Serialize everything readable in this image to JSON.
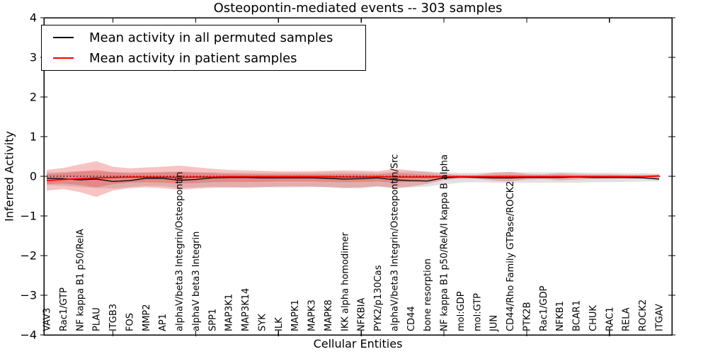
{
  "title": "Osteopontin-mediated events -- 303 samples",
  "axes": {
    "ylabel": "Inferred Activity",
    "xlabel": "Cellular Entities",
    "ylim": [
      -4,
      4
    ],
    "yticks": [
      {
        "value": 4,
        "label": "4"
      },
      {
        "value": 3,
        "label": "3"
      },
      {
        "value": 2,
        "label": "2"
      },
      {
        "value": 1,
        "label": "1"
      },
      {
        "value": 0,
        "label": "0"
      },
      {
        "value": -1,
        "label": "−1"
      },
      {
        "value": -2,
        "label": "−2"
      },
      {
        "value": -3,
        "label": "−3"
      },
      {
        "value": -4,
        "label": "−4"
      }
    ]
  },
  "legend": {
    "items": [
      {
        "label": "Mean activity in all permuted samples",
        "color": "#000000"
      },
      {
        "label": "Mean activity in patient samples",
        "color": "#ff0000"
      }
    ]
  },
  "chart_data": {
    "type": "line",
    "title": "Osteopontin-mediated events -- 303 samples",
    "xlabel": "Cellular Entities",
    "ylabel": "Inferred Activity",
    "ylim": [
      -4,
      4
    ],
    "grid": false,
    "legend_position": "upper left",
    "zero_line": {
      "style": "dotted",
      "color": "#000000",
      "y": 0
    },
    "categories": [
      "VAV3",
      "Rac1/GTP",
      "NF kappa B1 p50/RelA",
      "PLAU",
      "ITGB3",
      "FOS",
      "MMP2",
      "AP1",
      "alphaV/beta3 Integrin/Osteopontin",
      "alphaV beta3 Integrin",
      "SPP1",
      "MAP3K1",
      "MAP3K14",
      "SYK",
      "ILK",
      "MAPK1",
      "MAPK3",
      "MAPK8",
      "IKK alpha homodimer",
      "NFKBIA",
      "PYK2/p130Cas",
      "alphaV/beta3 Integrin/Osteopontin/Src",
      "CD44",
      "bone resorption",
      "NF kappa B1 p50/RelA/I kappa B alpha",
      "mol:GDP",
      "mol:GTP",
      "JUN",
      "CD44/Rho Family GTPase/ROCK2",
      "PTK2B",
      "Rac1/GDP",
      "NFKB1",
      "BCAR1",
      "CHUK",
      "RAC1",
      "RELA",
      "ROCK2",
      "ITGAV"
    ],
    "series": [
      {
        "name": "permuted-std-band",
        "type": "band",
        "color": "rgba(90,90,90,0.18)",
        "upper": [
          0.1,
          0.11,
          0.13,
          0.12,
          0.11,
          0.1,
          0.1,
          0.11,
          0.12,
          0.11,
          0.1,
          0.09,
          0.09,
          0.09,
          0.09,
          0.09,
          0.09,
          0.1,
          0.1,
          0.1,
          0.09,
          0.11,
          0.12,
          0.12,
          0.1,
          0.09,
          0.09,
          0.1,
          0.11,
          0.1,
          0.1,
          0.1,
          0.1,
          0.09,
          0.09,
          0.08,
          0.08,
          0.07
        ],
        "lower": [
          -0.22,
          -0.24,
          -0.27,
          -0.29,
          -0.31,
          -0.27,
          -0.24,
          -0.25,
          -0.29,
          -0.28,
          -0.26,
          -0.28,
          -0.29,
          -0.28,
          -0.28,
          -0.28,
          -0.27,
          -0.28,
          -0.3,
          -0.3,
          -0.26,
          -0.29,
          -0.28,
          -0.26,
          -0.2,
          -0.16,
          -0.15,
          -0.16,
          -0.17,
          -0.16,
          -0.16,
          -0.16,
          -0.16,
          -0.15,
          -0.15,
          -0.14,
          -0.13,
          -0.13
        ]
      },
      {
        "name": "patient-std-band-outer",
        "type": "band",
        "color": "rgba(230,40,40,0.28)",
        "upper": [
          0.16,
          0.21,
          0.3,
          0.38,
          0.24,
          0.2,
          0.22,
          0.24,
          0.27,
          0.23,
          0.19,
          0.16,
          0.15,
          0.14,
          0.13,
          0.13,
          0.13,
          0.14,
          0.15,
          0.14,
          0.13,
          0.19,
          0.15,
          0.11,
          0.06,
          0.04,
          0.04,
          0.09,
          0.11,
          0.06,
          0.05,
          0.08,
          0.06,
          0.05,
          0.05,
          0.04,
          0.04,
          0.04
        ],
        "lower": [
          -0.36,
          -0.32,
          -0.4,
          -0.52,
          -0.36,
          -0.3,
          -0.28,
          -0.3,
          -0.34,
          -0.31,
          -0.29,
          -0.28,
          -0.28,
          -0.27,
          -0.26,
          -0.26,
          -0.26,
          -0.27,
          -0.29,
          -0.28,
          -0.25,
          -0.3,
          -0.26,
          -0.19,
          -0.09,
          -0.06,
          -0.06,
          -0.11,
          -0.13,
          -0.08,
          -0.07,
          -0.1,
          -0.08,
          -0.07,
          -0.06,
          -0.06,
          -0.05,
          -0.05
        ]
      },
      {
        "name": "patient-std-band-inner",
        "type": "band",
        "color": "rgba(230,40,40,0.28)",
        "upper": [
          0.06,
          0.08,
          0.12,
          0.16,
          0.1,
          0.08,
          0.09,
          0.1,
          0.11,
          0.09,
          0.08,
          0.06,
          0.06,
          0.05,
          0.05,
          0.05,
          0.05,
          0.05,
          0.06,
          0.05,
          0.05,
          0.08,
          0.06,
          0.04,
          0.02,
          0.01,
          0.01,
          0.03,
          0.04,
          0.02,
          0.02,
          0.03,
          0.02,
          0.02,
          0.02,
          0.01,
          0.01,
          0.01
        ],
        "lower": [
          -0.2,
          -0.18,
          -0.22,
          -0.28,
          -0.2,
          -0.16,
          -0.15,
          -0.16,
          -0.18,
          -0.17,
          -0.15,
          -0.14,
          -0.14,
          -0.14,
          -0.13,
          -0.13,
          -0.13,
          -0.14,
          -0.15,
          -0.14,
          -0.13,
          -0.16,
          -0.14,
          -0.1,
          -0.05,
          -0.03,
          -0.03,
          -0.06,
          -0.07,
          -0.04,
          -0.04,
          -0.05,
          -0.04,
          -0.03,
          -0.03,
          -0.03,
          -0.03,
          -0.03
        ]
      },
      {
        "name": "Mean activity in all permuted samples",
        "type": "line",
        "color": "#000000",
        "width": 1.3,
        "values": [
          -0.05,
          -0.06,
          -0.09,
          -0.07,
          -0.13,
          -0.11,
          -0.05,
          -0.05,
          -0.1,
          -0.08,
          -0.04,
          -0.03,
          -0.03,
          -0.04,
          -0.04,
          -0.04,
          -0.04,
          -0.05,
          -0.07,
          -0.06,
          -0.04,
          -0.09,
          -0.11,
          -0.12,
          -0.04,
          -0.02,
          -0.03,
          -0.04,
          -0.04,
          -0.03,
          -0.03,
          -0.03,
          -0.02,
          -0.03,
          -0.03,
          -0.03,
          -0.04,
          -0.07
        ]
      },
      {
        "name": "Mean activity in patient samples",
        "type": "line",
        "color": "#ff0000",
        "width": 1.8,
        "values": [
          -0.11,
          -0.08,
          -0.06,
          -0.04,
          -0.03,
          -0.02,
          -0.02,
          -0.02,
          -0.03,
          -0.02,
          -0.02,
          -0.01,
          -0.01,
          -0.01,
          -0.01,
          -0.01,
          -0.01,
          -0.01,
          -0.02,
          -0.02,
          -0.01,
          -0.02,
          -0.02,
          -0.02,
          -0.01,
          -0.01,
          -0.01,
          -0.01,
          -0.01,
          -0.01,
          -0.01,
          -0.01,
          -0.01,
          -0.01,
          -0.01,
          -0.01,
          -0.01,
          0.01
        ]
      }
    ]
  }
}
